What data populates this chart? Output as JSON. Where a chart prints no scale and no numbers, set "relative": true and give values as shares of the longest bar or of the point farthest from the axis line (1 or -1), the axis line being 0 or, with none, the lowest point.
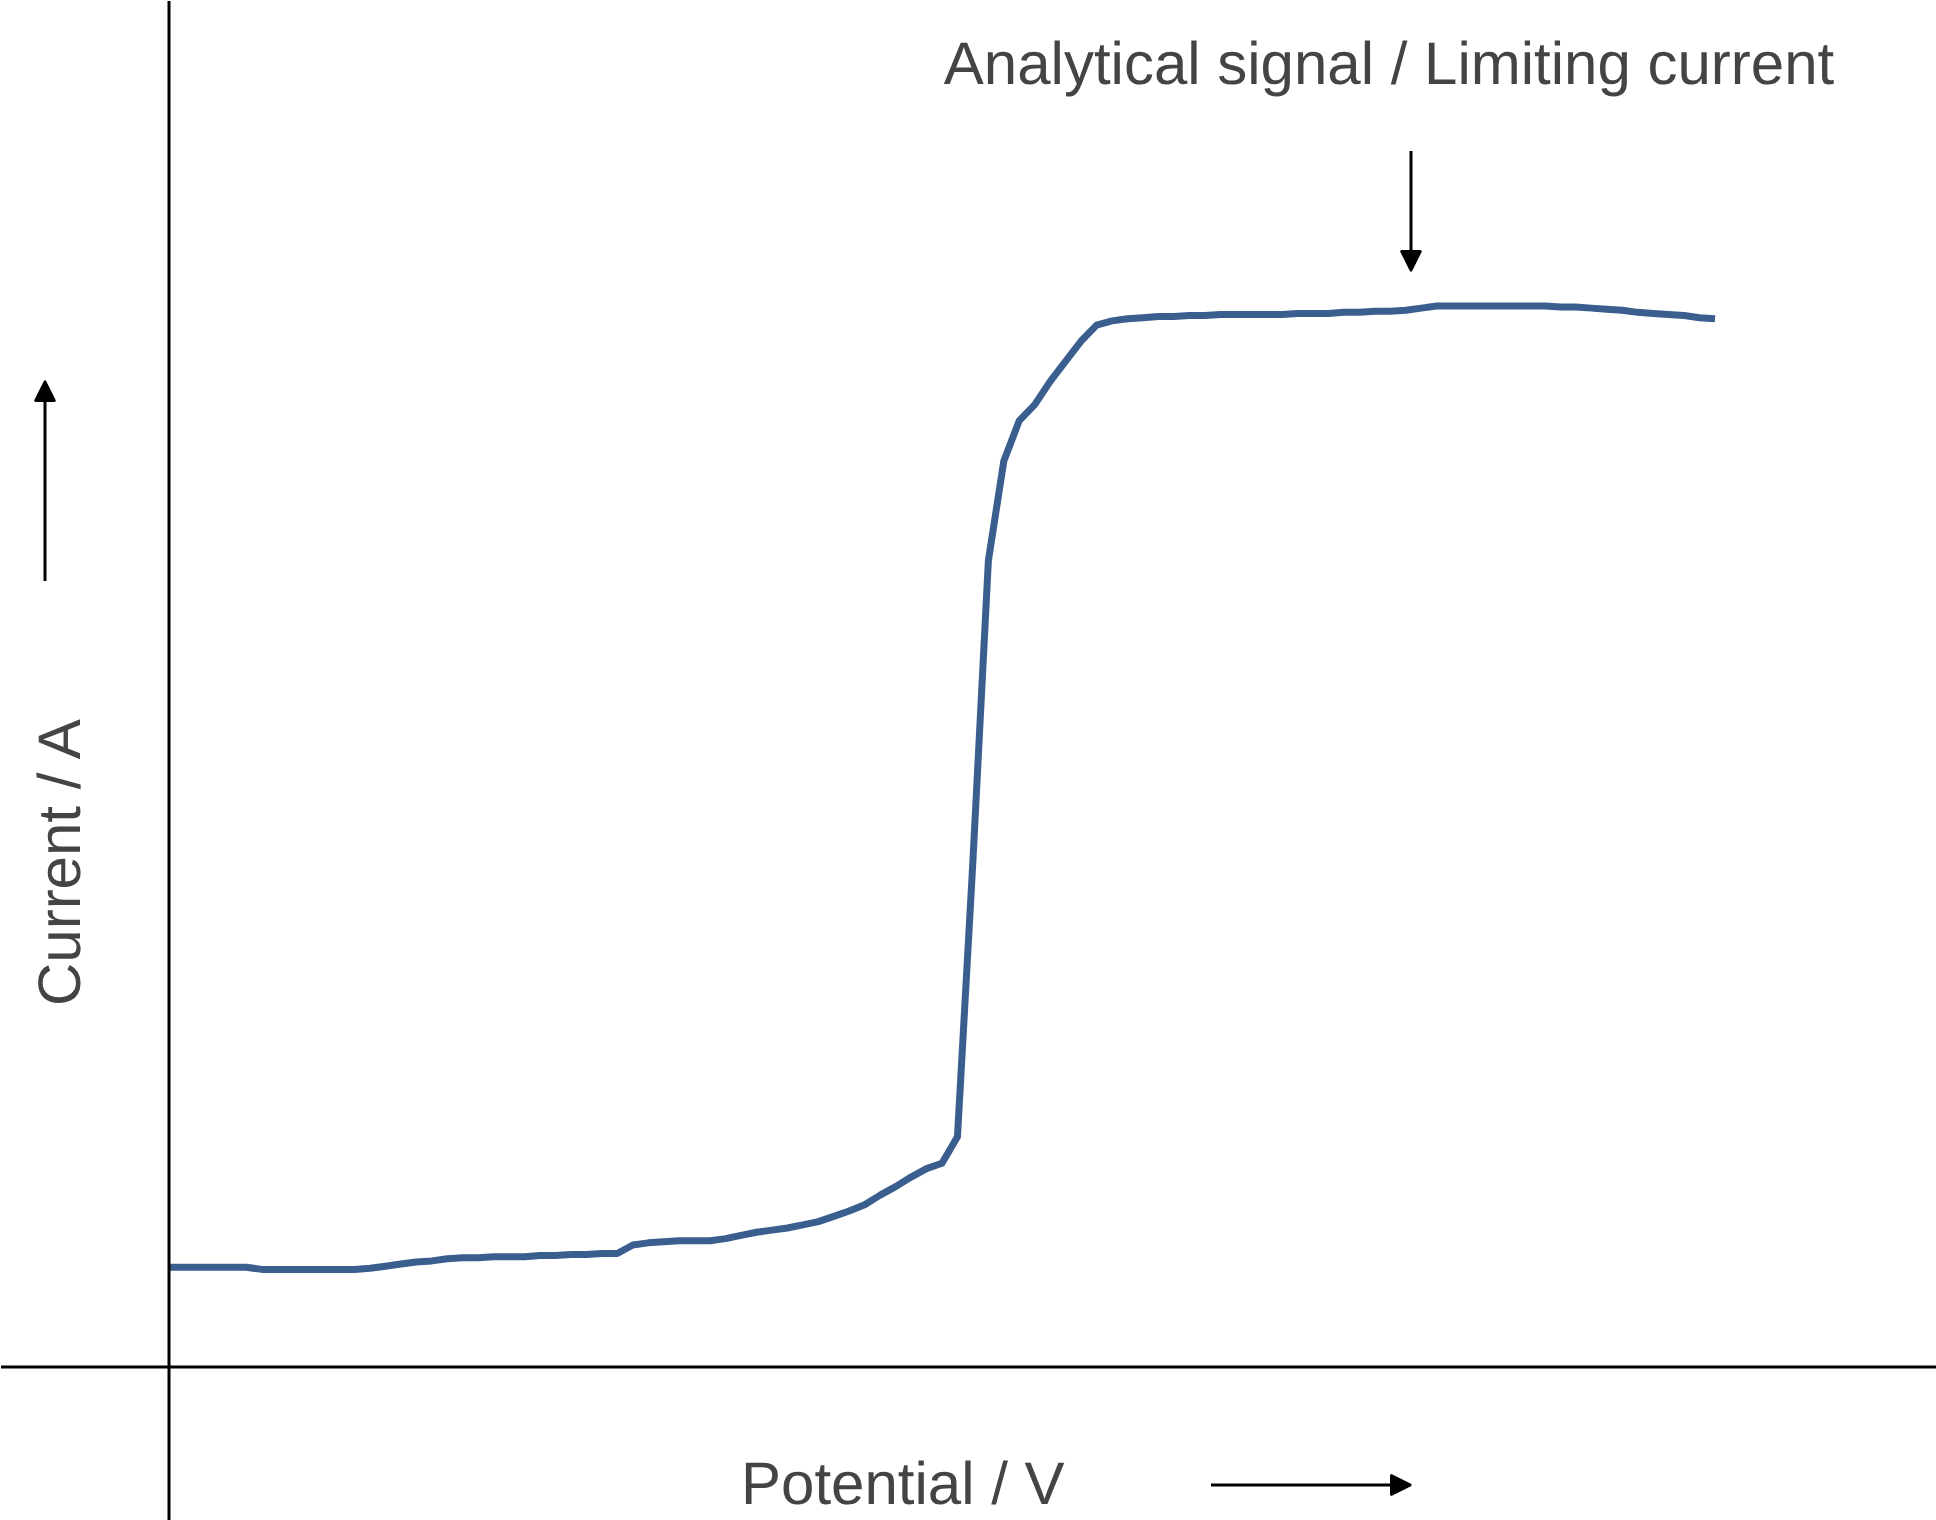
{
  "chart_data": {
    "type": "line",
    "relative": true,
    "xlabel": "Potential / V",
    "ylabel": "Current / A",
    "annotations": [
      "Analytical signal / Limiting current"
    ],
    "categories": [
      null,
      null,
      null,
      null,
      null,
      null,
      null,
      null,
      null,
      null,
      null,
      null,
      null,
      null,
      null,
      null,
      null,
      null,
      null,
      null,
      null,
      null,
      null,
      null,
      null,
      null,
      null,
      null,
      null,
      null,
      null,
      null,
      null,
      null,
      null,
      null,
      null,
      null,
      null,
      null,
      null,
      null,
      null,
      null,
      null,
      null,
      null,
      null,
      null,
      null,
      null,
      null,
      null,
      null,
      null,
      null,
      null,
      null,
      null,
      null,
      null,
      null,
      null,
      null,
      null,
      null,
      null,
      null,
      null,
      null,
      null,
      null,
      null,
      null,
      null,
      null,
      null,
      null,
      null,
      null,
      null,
      null,
      null,
      null,
      null,
      null,
      null,
      null,
      null,
      null,
      null,
      null,
      null,
      null,
      null,
      null,
      null,
      null,
      null,
      null,
      null
    ],
    "color": "#3a5f8f",
    "values": [
      0.094,
      0.094,
      0.094,
      0.094,
      0.094,
      0.094,
      0.092,
      0.092,
      0.092,
      0.092,
      0.092,
      0.092,
      0.092,
      0.093,
      0.095,
      0.097,
      0.099,
      0.1,
      0.102,
      0.103,
      0.103,
      0.104,
      0.104,
      0.104,
      0.105,
      0.105,
      0.106,
      0.106,
      0.107,
      0.107,
      0.115,
      0.117,
      0.118,
      0.119,
      0.119,
      0.119,
      0.121,
      0.124,
      0.127,
      0.129,
      0.131,
      0.134,
      0.137,
      0.142,
      0.147,
      0.153,
      0.162,
      0.17,
      0.179,
      0.187,
      0.192,
      0.217,
      0.477,
      0.76,
      0.854,
      0.892,
      0.907,
      0.929,
      0.948,
      0.967,
      0.982,
      0.986,
      0.988,
      0.989,
      0.99,
      0.99,
      0.991,
      0.991,
      0.992,
      0.992,
      0.992,
      0.992,
      0.992,
      0.993,
      0.993,
      0.993,
      0.994,
      0.994,
      0.995,
      0.995,
      0.996,
      0.998,
      1,
      1,
      1,
      1,
      1,
      1,
      1,
      1,
      0.999,
      0.999,
      0.998,
      0.997,
      0.996,
      0.994,
      0.993,
      0.992,
      0.991,
      0.989,
      0.988
    ]
  }
}
